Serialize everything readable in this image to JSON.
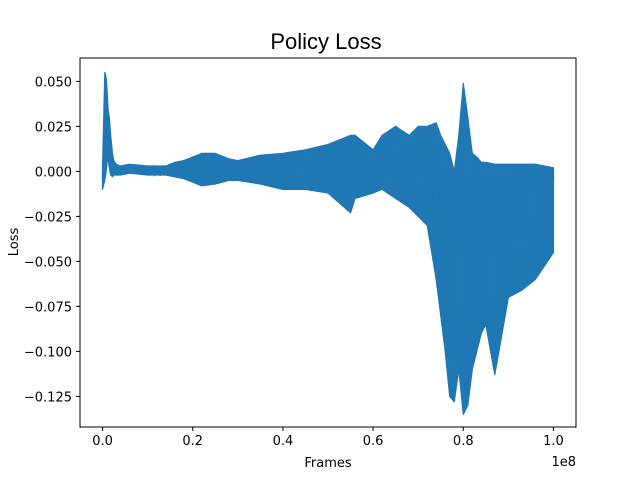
{
  "chart_data": {
    "type": "line",
    "title": "Policy Loss",
    "xlabel": "Frames",
    "ylabel": "Loss",
    "x_offset_label": "1e8",
    "xlim": [
      -0.05,
      1.05
    ],
    "ylim": [
      -0.142,
      0.063
    ],
    "x_ticks": [
      0.0,
      0.2,
      0.4,
      0.6,
      0.8,
      1.0
    ],
    "x_tick_labels": [
      "0.0",
      "0.2",
      "0.4",
      "0.6",
      "0.8",
      "1.0"
    ],
    "y_ticks": [
      0.05,
      0.025,
      0.0,
      -0.025,
      -0.05,
      -0.075,
      -0.1,
      -0.125
    ],
    "y_tick_labels": [
      "0.050",
      "0.025",
      "0.000",
      "−0.025",
      "−0.050",
      "−0.075",
      "−0.100",
      "−0.125"
    ],
    "grid": false,
    "series_color": "#1f77b4",
    "series": [
      {
        "x": [
          0.0,
          0.005,
          0.008,
          0.01,
          0.012,
          0.015,
          0.018,
          0.022,
          0.025,
          0.03,
          0.04,
          0.06,
          0.1,
          0.14,
          0.16,
          0.18,
          0.2,
          0.22,
          0.25,
          0.28,
          0.3,
          0.35,
          0.4,
          0.45,
          0.5,
          0.55,
          0.56,
          0.6,
          0.62,
          0.65,
          0.68,
          0.7,
          0.72,
          0.74,
          0.75,
          0.76,
          0.77,
          0.78,
          0.79,
          0.8,
          0.81,
          0.82,
          0.83,
          0.84,
          0.85,
          0.87,
          0.9,
          0.93,
          0.96,
          1.0
        ],
        "high": [
          0.002,
          0.055,
          0.052,
          0.045,
          0.035,
          0.03,
          0.02,
          0.01,
          0.006,
          0.004,
          0.003,
          0.004,
          0.003,
          0.003,
          0.005,
          0.006,
          0.008,
          0.01,
          0.01,
          0.007,
          0.006,
          0.009,
          0.01,
          0.012,
          0.015,
          0.02,
          0.02,
          0.012,
          0.02,
          0.025,
          0.02,
          0.025,
          0.025,
          0.027,
          0.02,
          0.015,
          0.01,
          0.0,
          0.02,
          0.049,
          0.03,
          0.01,
          0.008,
          0.005,
          0.005,
          0.004,
          0.004,
          0.004,
          0.004,
          0.002
        ],
        "low": [
          -0.01,
          -0.005,
          0.0,
          0.005,
          0.008,
          0.002,
          -0.002,
          -0.003,
          -0.002,
          -0.002,
          -0.002,
          -0.001,
          -0.002,
          -0.002,
          -0.003,
          -0.004,
          -0.006,
          -0.008,
          -0.007,
          -0.005,
          -0.005,
          -0.007,
          -0.01,
          -0.01,
          -0.012,
          -0.023,
          -0.015,
          -0.012,
          -0.01,
          -0.015,
          -0.02,
          -0.025,
          -0.03,
          -0.06,
          -0.08,
          -0.1,
          -0.125,
          -0.128,
          -0.11,
          -0.135,
          -0.13,
          -0.11,
          -0.1,
          -0.09,
          -0.085,
          -0.113,
          -0.07,
          -0.066,
          -0.06,
          -0.045
        ]
      }
    ]
  }
}
